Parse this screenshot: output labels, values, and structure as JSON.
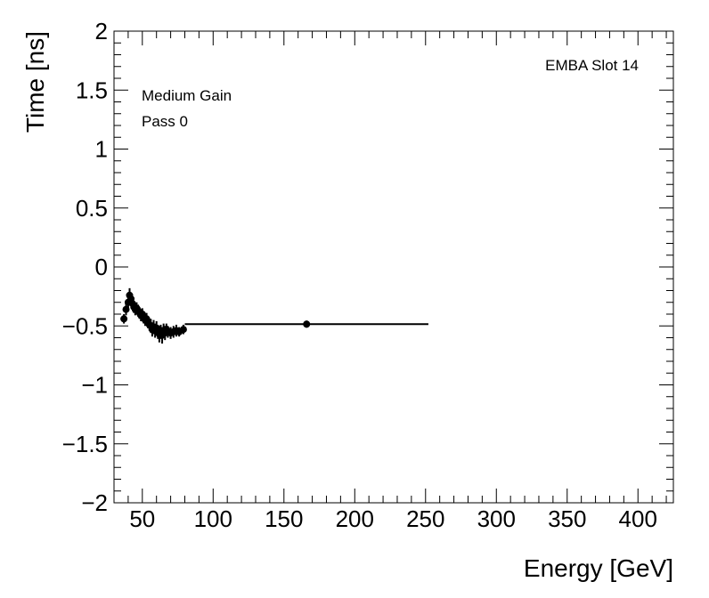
{
  "chart_data": {
    "type": "scatter",
    "xlabel": "Energy [GeV]",
    "ylabel": "Time [ns]",
    "xlim": [
      30,
      425
    ],
    "ylim": [
      -2,
      2
    ],
    "x_ticks": [
      50,
      100,
      150,
      200,
      250,
      300,
      350,
      400
    ],
    "y_ticks": [
      -2,
      -1.5,
      -1,
      -0.5,
      0,
      0.5,
      1,
      1.5,
      2
    ],
    "x_tick_labels": [
      "50",
      "100",
      "150",
      "200",
      "250",
      "300",
      "350",
      "400"
    ],
    "y_tick_labels": [
      "−2",
      "−1.5",
      "−1",
      "−0.5",
      "0",
      "0.5",
      "1",
      "1.5",
      "2"
    ],
    "grid": false,
    "annotations": {
      "slot": "EMBA Slot 14",
      "gain": "Medium Gain",
      "pass": "Pass 0"
    },
    "marker_color": "#000000",
    "points": [
      {
        "x": 37.0,
        "y": -0.44,
        "xerr": 0.5,
        "yerr": 0.04
      },
      {
        "x": 38.5,
        "y": -0.36,
        "xerr": 0.5,
        "yerr": 0.05
      },
      {
        "x": 40.0,
        "y": -0.3,
        "xerr": 0.5,
        "yerr": 0.06
      },
      {
        "x": 41.0,
        "y": -0.24,
        "xerr": 0.5,
        "yerr": 0.06
      },
      {
        "x": 42.0,
        "y": -0.27,
        "xerr": 0.5,
        "yerr": 0.05
      },
      {
        "x": 43.0,
        "y": -0.31,
        "xerr": 0.5,
        "yerr": 0.05
      },
      {
        "x": 44.0,
        "y": -0.34,
        "xerr": 0.5,
        "yerr": 0.05
      },
      {
        "x": 45.0,
        "y": -0.36,
        "xerr": 0.5,
        "yerr": 0.05
      },
      {
        "x": 46.0,
        "y": -0.35,
        "xerr": 0.5,
        "yerr": 0.05
      },
      {
        "x": 47.0,
        "y": -0.37,
        "xerr": 0.5,
        "yerr": 0.05
      },
      {
        "x": 48.0,
        "y": -0.39,
        "xerr": 0.5,
        "yerr": 0.05
      },
      {
        "x": 49.0,
        "y": -0.41,
        "xerr": 0.5,
        "yerr": 0.05
      },
      {
        "x": 50.0,
        "y": -0.4,
        "xerr": 0.5,
        "yerr": 0.05
      },
      {
        "x": 51.0,
        "y": -0.43,
        "xerr": 0.5,
        "yerr": 0.05
      },
      {
        "x": 52.0,
        "y": -0.45,
        "xerr": 0.5,
        "yerr": 0.05
      },
      {
        "x": 53.0,
        "y": -0.44,
        "xerr": 0.5,
        "yerr": 0.05
      },
      {
        "x": 54.0,
        "y": -0.47,
        "xerr": 0.5,
        "yerr": 0.05
      },
      {
        "x": 55.0,
        "y": -0.49,
        "xerr": 0.5,
        "yerr": 0.05
      },
      {
        "x": 56.0,
        "y": -0.5,
        "xerr": 0.5,
        "yerr": 0.06
      },
      {
        "x": 57.0,
        "y": -0.53,
        "xerr": 0.5,
        "yerr": 0.06
      },
      {
        "x": 58.0,
        "y": -0.51,
        "xerr": 0.5,
        "yerr": 0.06
      },
      {
        "x": 59.0,
        "y": -0.54,
        "xerr": 0.5,
        "yerr": 0.06
      },
      {
        "x": 60.0,
        "y": -0.52,
        "xerr": 0.5,
        "yerr": 0.06
      },
      {
        "x": 61.0,
        "y": -0.55,
        "xerr": 0.5,
        "yerr": 0.06
      },
      {
        "x": 62.0,
        "y": -0.57,
        "xerr": 0.5,
        "yerr": 0.07
      },
      {
        "x": 63.0,
        "y": -0.55,
        "xerr": 0.5,
        "yerr": 0.06
      },
      {
        "x": 64.0,
        "y": -0.58,
        "xerr": 0.5,
        "yerr": 0.07
      },
      {
        "x": 65.0,
        "y": -0.54,
        "xerr": 0.5,
        "yerr": 0.06
      },
      {
        "x": 66.0,
        "y": -0.56,
        "xerr": 0.5,
        "yerr": 0.06
      },
      {
        "x": 67.0,
        "y": -0.53,
        "xerr": 0.5,
        "yerr": 0.05
      },
      {
        "x": 68.0,
        "y": -0.55,
        "xerr": 0.5,
        "yerr": 0.05
      },
      {
        "x": 70.0,
        "y": -0.56,
        "xerr": 1.0,
        "yerr": 0.05
      },
      {
        "x": 72.0,
        "y": -0.55,
        "xerr": 1.0,
        "yerr": 0.05
      },
      {
        "x": 74.0,
        "y": -0.54,
        "xerr": 1.0,
        "yerr": 0.05
      },
      {
        "x": 76.0,
        "y": -0.55,
        "xerr": 1.0,
        "yerr": 0.04
      },
      {
        "x": 79.0,
        "y": -0.53,
        "xerr": 1.5,
        "yerr": 0.04
      },
      {
        "x": 166.0,
        "y": -0.485,
        "xerr": 86.0,
        "yerr": 0.03
      }
    ]
  }
}
